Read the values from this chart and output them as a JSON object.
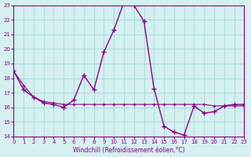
{
  "xlabel": "Windchill (Refroidissement éolien,°C)",
  "ylabel": "",
  "bg_color": "#d6f0f0",
  "grid_color": "#aadddd",
  "line_color": "#880088",
  "xlim": [
    0,
    23
  ],
  "ylim": [
    14,
    23
  ],
  "yticks": [
    14,
    15,
    16,
    17,
    18,
    19,
    20,
    21,
    22,
    23
  ],
  "xticks": [
    0,
    1,
    2,
    3,
    4,
    5,
    6,
    7,
    8,
    9,
    10,
    11,
    12,
    13,
    14,
    15,
    16,
    17,
    18,
    19,
    20,
    21,
    22,
    23
  ],
  "line1_x": [
    0,
    1,
    2,
    3,
    4,
    5,
    6,
    7,
    8,
    9,
    10,
    11,
    12,
    13,
    14,
    15,
    16,
    17,
    18,
    19,
    20,
    21,
    22,
    23
  ],
  "line1_y": [
    18.5,
    17.2,
    16.7,
    16.3,
    16.2,
    16.0,
    16.5,
    18.2,
    17.2,
    19.8,
    21.3,
    23.2,
    23.0,
    21.9,
    17.3,
    14.7,
    14.3,
    14.1,
    16.1,
    15.6,
    15.7,
    16.1,
    16.2,
    16.2
  ],
  "line2_x": [
    0,
    1,
    2,
    3,
    4,
    5,
    6,
    7,
    8,
    9,
    10,
    11,
    12,
    13,
    14,
    15,
    16,
    17,
    18,
    19,
    20,
    21,
    22,
    23
  ],
  "line2_y": [
    18.5,
    17.5,
    16.7,
    16.4,
    16.3,
    16.2,
    16.2,
    16.2,
    16.2,
    16.2,
    16.2,
    16.2,
    16.2,
    16.2,
    16.2,
    16.2,
    16.2,
    16.2,
    16.2,
    16.2,
    16.1,
    16.1,
    16.1,
    16.1
  ]
}
